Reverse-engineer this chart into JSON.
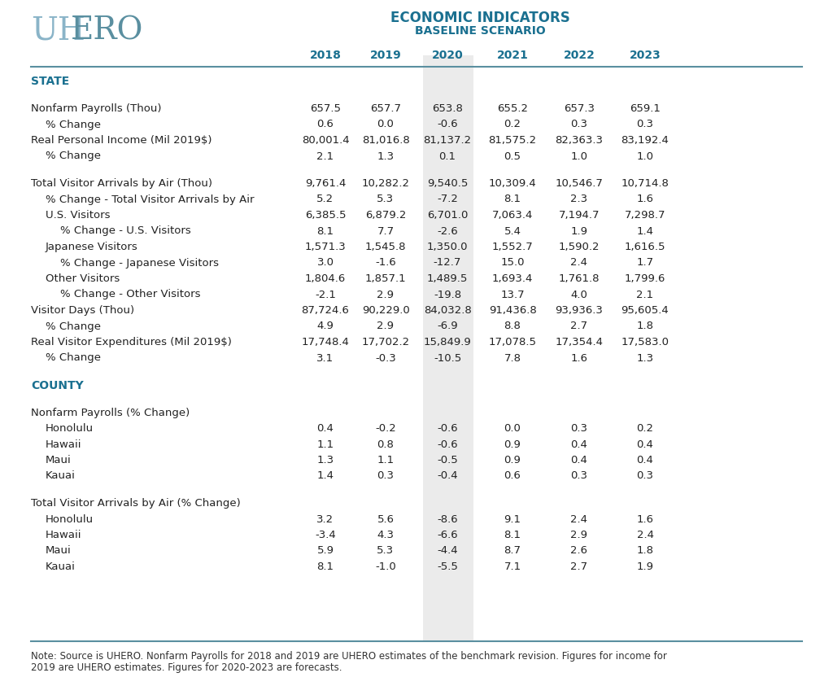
{
  "title1": "ECONOMIC INDICATORS",
  "title2": "BASELINE SCENARIO",
  "title_color": "#1a7090",
  "logo_uh_color": "#8ab4c8",
  "logo_ero_color": "#5a8fa0",
  "years": [
    "2018",
    "2019",
    "2020",
    "2021",
    "2022",
    "2023"
  ],
  "highlight_color": "#ebebeb",
  "section_color": "#1a7090",
  "header_color": "#1a7090",
  "line_color": "#5a8fa0",
  "bg_color": "#ffffff",
  "text_color": "#222222",
  "rows": [
    {
      "label": "STATE",
      "values": [],
      "type": "section"
    },
    {
      "label": "",
      "values": [],
      "type": "spacer_large"
    },
    {
      "label": "Nonfarm Payrolls (Thou)",
      "values": [
        "657.5",
        "657.7",
        "653.8",
        "655.2",
        "657.3",
        "659.1"
      ],
      "type": "data",
      "indent": 0
    },
    {
      "label": "% Change",
      "values": [
        "0.6",
        "0.0",
        "-0.6",
        "0.2",
        "0.3",
        "0.3"
      ],
      "type": "data",
      "indent": 1
    },
    {
      "label": "Real Personal Income (Mil 2019$)",
      "values": [
        "80,001.4",
        "81,016.8",
        "81,137.2",
        "81,575.2",
        "82,363.3",
        "83,192.4"
      ],
      "type": "data",
      "indent": 0
    },
    {
      "label": "% Change",
      "values": [
        "2.1",
        "1.3",
        "0.1",
        "0.5",
        "1.0",
        "1.0"
      ],
      "type": "data",
      "indent": 1
    },
    {
      "label": "",
      "values": [],
      "type": "spacer_large"
    },
    {
      "label": "Total Visitor Arrivals by Air (Thou)",
      "values": [
        "9,761.4",
        "10,282.2",
        "9,540.5",
        "10,309.4",
        "10,546.7",
        "10,714.8"
      ],
      "type": "data",
      "indent": 0
    },
    {
      "label": "% Change - Total Visitor Arrivals by Air",
      "values": [
        "5.2",
        "5.3",
        "-7.2",
        "8.1",
        "2.3",
        "1.6"
      ],
      "type": "data",
      "indent": 1
    },
    {
      "label": "U.S. Visitors",
      "values": [
        "6,385.5",
        "6,879.2",
        "6,701.0",
        "7,063.4",
        "7,194.7",
        "7,298.7"
      ],
      "type": "data",
      "indent": 1
    },
    {
      "label": "% Change - U.S. Visitors",
      "values": [
        "8.1",
        "7.7",
        "-2.6",
        "5.4",
        "1.9",
        "1.4"
      ],
      "type": "data",
      "indent": 2
    },
    {
      "label": "Japanese Visitors",
      "values": [
        "1,571.3",
        "1,545.8",
        "1,350.0",
        "1,552.7",
        "1,590.2",
        "1,616.5"
      ],
      "type": "data",
      "indent": 1
    },
    {
      "label": "% Change - Japanese Visitors",
      "values": [
        "3.0",
        "-1.6",
        "-12.7",
        "15.0",
        "2.4",
        "1.7"
      ],
      "type": "data",
      "indent": 2
    },
    {
      "label": "Other Visitors",
      "values": [
        "1,804.6",
        "1,857.1",
        "1,489.5",
        "1,693.4",
        "1,761.8",
        "1,799.6"
      ],
      "type": "data",
      "indent": 1
    },
    {
      "label": "% Change - Other Visitors",
      "values": [
        "-2.1",
        "2.9",
        "-19.8",
        "13.7",
        "4.0",
        "2.1"
      ],
      "type": "data",
      "indent": 2
    },
    {
      "label": "Visitor Days (Thou)",
      "values": [
        "87,724.6",
        "90,229.0",
        "84,032.8",
        "91,436.8",
        "93,936.3",
        "95,605.4"
      ],
      "type": "data",
      "indent": 0
    },
    {
      "label": "% Change",
      "values": [
        "4.9",
        "2.9",
        "-6.9",
        "8.8",
        "2.7",
        "1.8"
      ],
      "type": "data",
      "indent": 1
    },
    {
      "label": "Real Visitor Expenditures (Mil 2019$)",
      "values": [
        "17,748.4",
        "17,702.2",
        "15,849.9",
        "17,078.5",
        "17,354.4",
        "17,583.0"
      ],
      "type": "data",
      "indent": 0
    },
    {
      "label": "% Change",
      "values": [
        "3.1",
        "-0.3",
        "-10.5",
        "7.8",
        "1.6",
        "1.3"
      ],
      "type": "data",
      "indent": 1
    },
    {
      "label": "",
      "values": [],
      "type": "spacer_large"
    },
    {
      "label": "COUNTY",
      "values": [],
      "type": "section"
    },
    {
      "label": "",
      "values": [],
      "type": "spacer_large"
    },
    {
      "label": "Nonfarm Payrolls (% Change)",
      "values": [],
      "type": "subheader"
    },
    {
      "label": "Honolulu",
      "values": [
        "0.4",
        "-0.2",
        "-0.6",
        "0.0",
        "0.3",
        "0.2"
      ],
      "type": "data",
      "indent": 1
    },
    {
      "label": "Hawaii",
      "values": [
        "1.1",
        "0.8",
        "-0.6",
        "0.9",
        "0.4",
        "0.4"
      ],
      "type": "data",
      "indent": 1
    },
    {
      "label": "Maui",
      "values": [
        "1.3",
        "1.1",
        "-0.5",
        "0.9",
        "0.4",
        "0.4"
      ],
      "type": "data",
      "indent": 1
    },
    {
      "label": "Kauai",
      "values": [
        "1.4",
        "0.3",
        "-0.4",
        "0.6",
        "0.3",
        "0.3"
      ],
      "type": "data",
      "indent": 1
    },
    {
      "label": "",
      "values": [],
      "type": "spacer_large"
    },
    {
      "label": "Total Visitor Arrivals by Air (% Change)",
      "values": [],
      "type": "subheader"
    },
    {
      "label": "Honolulu",
      "values": [
        "3.2",
        "5.6",
        "-8.6",
        "9.1",
        "2.4",
        "1.6"
      ],
      "type": "data",
      "indent": 1
    },
    {
      "label": "Hawaii",
      "values": [
        "-3.4",
        "4.3",
        "-6.6",
        "8.1",
        "2.9",
        "2.4"
      ],
      "type": "data",
      "indent": 1
    },
    {
      "label": "Maui",
      "values": [
        "5.9",
        "5.3",
        "-4.4",
        "8.7",
        "2.6",
        "1.8"
      ],
      "type": "data",
      "indent": 1
    },
    {
      "label": "Kauai",
      "values": [
        "8.1",
        "-1.0",
        "-5.5",
        "7.1",
        "2.7",
        "1.9"
      ],
      "type": "data",
      "indent": 1
    }
  ],
  "note_line1": "Note: Source is UHERO. Nonfarm Payrolls for 2018 and 2019 are UHERO estimates of the benchmark revision. Figures for income for",
  "note_line2": "2019 are UHERO estimates. Figures for 2020-2023 are forecasts."
}
